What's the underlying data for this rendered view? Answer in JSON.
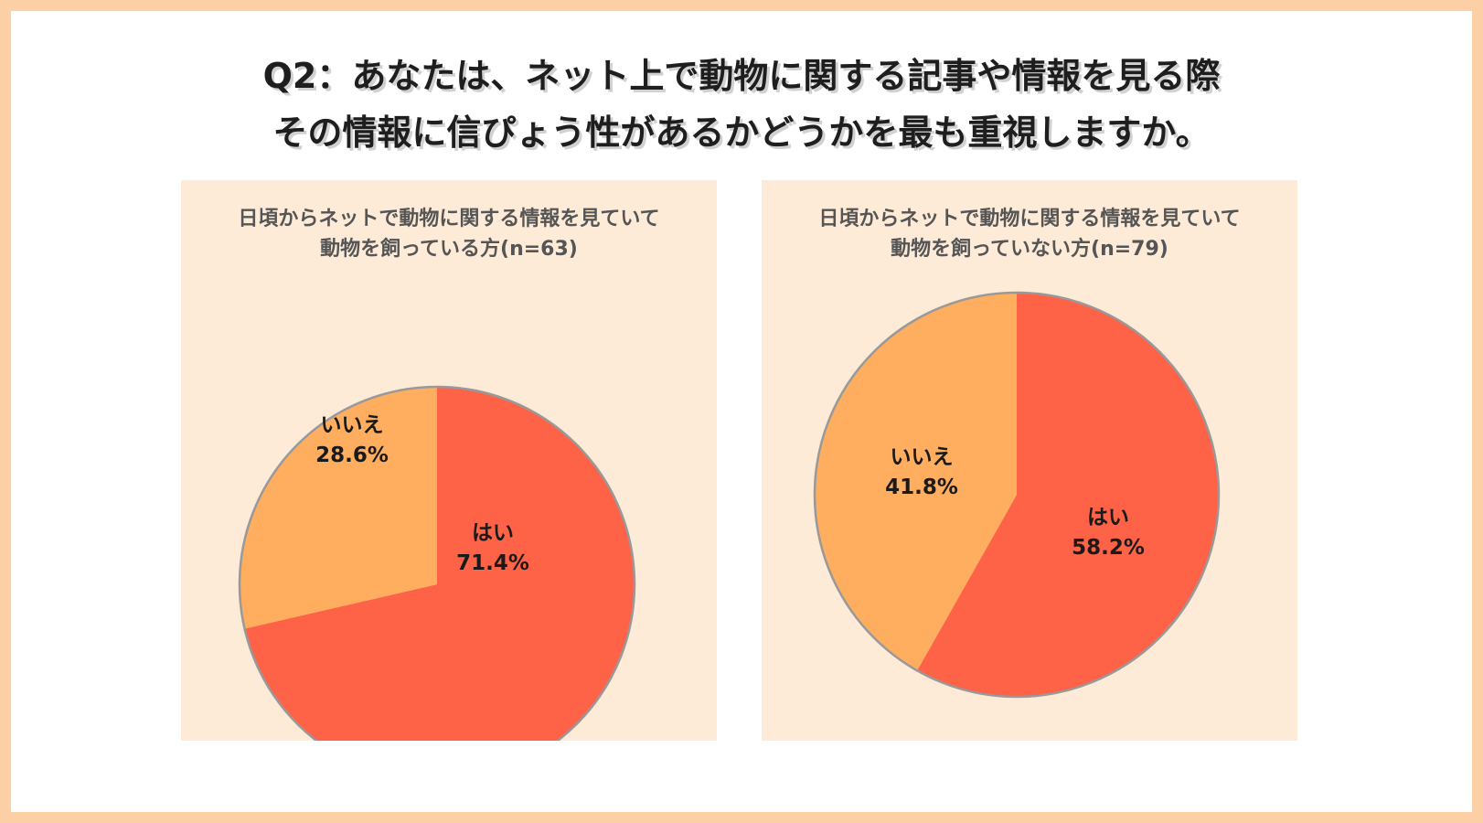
{
  "title": {
    "line1": "Q2：あなたは、ネット上で動物に関する記事や情報を見る際",
    "line2": "その情報に信ぴょう性があるかどうかを最も重視しますか。"
  },
  "colors": {
    "background_border": "#fcd0a4",
    "panel": "#fdebd7",
    "hai": "#ff6347",
    "iie": "#ffad5f",
    "outline": "#999999"
  },
  "chart_data": [
    {
      "type": "pie",
      "title_line1": "日頃からネットで動物に関する情報を見ていて",
      "title_line2": "動物を飼っている方(n=63)",
      "slices": [
        {
          "label": "はい",
          "value": 71.4,
          "value_text": "71.4%",
          "color": "#ff6347"
        },
        {
          "label": "いいえ",
          "value": 28.6,
          "value_text": "28.6%",
          "color": "#ffad5f"
        }
      ]
    },
    {
      "type": "pie",
      "title_line1": "日頃からネットで動物に関する情報を見ていて",
      "title_line2": "動物を飼っていない方(n=79)",
      "slices": [
        {
          "label": "はい",
          "value": 58.2,
          "value_text": "58.2%",
          "color": "#ff6347"
        },
        {
          "label": "いいえ",
          "value": 41.8,
          "value_text": "41.8%",
          "color": "#ffad5f"
        }
      ]
    }
  ]
}
